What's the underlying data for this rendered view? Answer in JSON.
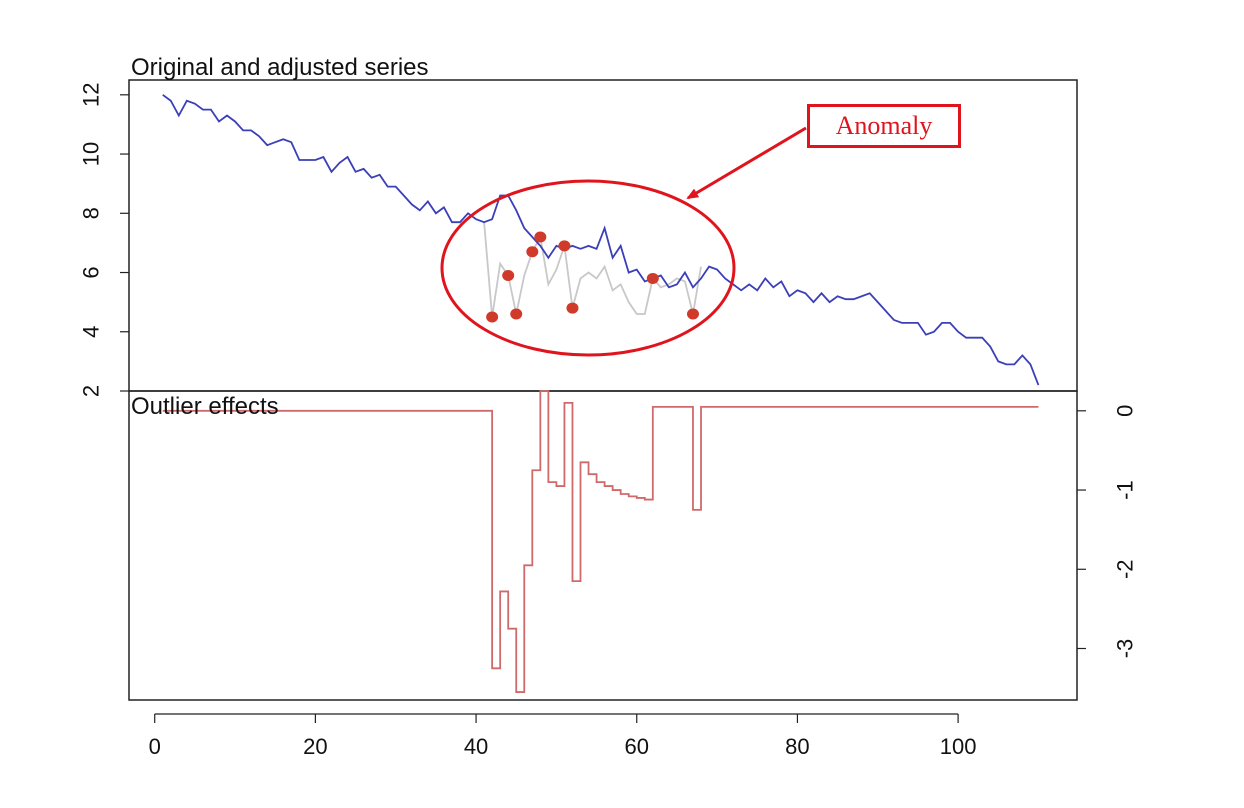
{
  "chart_data": {
    "type": "line",
    "panels": [
      {
        "title": "Original and adjusted series",
        "ylim": [
          2,
          12.5
        ],
        "y_ticks": [
          "2",
          "4",
          "6",
          "8",
          "10",
          "12"
        ],
        "y_tick_values": [
          2,
          4,
          6,
          8,
          10,
          12
        ],
        "series": [
          {
            "color": "#3b3fb8",
            "x": [
              1,
              2,
              3,
              4,
              5,
              6,
              7,
              8,
              9,
              10,
              11,
              12,
              13,
              14,
              15,
              16,
              17,
              18,
              19,
              20,
              21,
              22,
              23,
              24,
              25,
              26,
              27,
              28,
              29,
              30,
              31,
              32,
              33,
              34,
              35,
              36,
              37,
              38,
              39,
              40,
              41,
              42,
              43,
              44,
              45,
              46,
              47,
              48,
              49,
              50,
              51,
              52,
              53,
              54,
              55,
              56,
              57,
              58,
              59,
              60,
              61,
              62,
              63,
              64,
              65,
              66,
              67,
              68,
              69,
              70,
              71,
              72,
              73,
              74,
              75,
              76,
              77,
              78,
              79,
              80,
              81,
              82,
              83,
              84,
              85,
              86,
              87,
              88,
              89,
              90,
              91,
              92,
              93,
              94,
              95,
              96,
              97,
              98,
              99,
              100,
              101,
              102,
              103,
              104,
              105,
              106,
              107,
              108,
              109,
              110
            ],
            "y": [
              12,
              11.8,
              11.3,
              11.8,
              11.7,
              11.5,
              11.5,
              11.1,
              11.3,
              11.1,
              10.8,
              10.8,
              10.6,
              10.3,
              10.4,
              10.5,
              10.4,
              9.8,
              9.8,
              9.8,
              9.9,
              9.4,
              9.7,
              9.9,
              9.4,
              9.5,
              9.2,
              9.3,
              8.9,
              8.9,
              8.6,
              8.3,
              8.1,
              8.4,
              8.0,
              8.2,
              7.7,
              7.7,
              8.0,
              7.8,
              7.7,
              7.8,
              8.6,
              8.6,
              8.1,
              7.5,
              7.2,
              6.9,
              6.5,
              6.9,
              6.8,
              6.9,
              6.8,
              6.9,
              6.8,
              7.5,
              6.5,
              6.9,
              6.0,
              6.1,
              5.7,
              5.8,
              5.9,
              5.5,
              5.6,
              6.0,
              5.5,
              5.8,
              6.2,
              6.1,
              5.8,
              5.6,
              5.4,
              5.6,
              5.4,
              5.8,
              5.5,
              5.7,
              5.2,
              5.4,
              5.3,
              5.0,
              5.3,
              5.0,
              5.2,
              5.1,
              5.1,
              5.2,
              5.3,
              5.0,
              4.7,
              4.4,
              4.3,
              4.3,
              4.3,
              3.9,
              4.0,
              4.3,
              4.3,
              4.0,
              3.8,
              3.8,
              3.8,
              3.5,
              3.0,
              2.9,
              2.9,
              3.2,
              2.9,
              2.2
            ]
          },
          {
            "color": "#c8c8c8",
            "x": [
              41,
              42,
              43,
              44,
              45,
              46,
              47,
              48,
              49,
              50,
              51,
              52,
              53,
              54,
              55,
              56,
              57,
              58,
              59,
              60,
              61,
              62,
              63,
              64,
              65,
              66,
              67,
              68
            ],
            "y": [
              7.7,
              4.5,
              6.3,
              5.9,
              4.6,
              5.9,
              6.7,
              7.2,
              5.6,
              6.1,
              6.9,
              4.8,
              5.8,
              6.0,
              5.8,
              6.2,
              5.4,
              5.6,
              5.0,
              4.6,
              4.6,
              5.8,
              5.5,
              5.6,
              5.8,
              5.7,
              4.6,
              6.2
            ]
          }
        ],
        "anomaly_points": {
          "color": "#d03a2a",
          "x": [
            42,
            44,
            45,
            47,
            48,
            51,
            52,
            62,
            67
          ],
          "y": [
            4.5,
            5.9,
            4.6,
            6.7,
            7.2,
            6.9,
            4.8,
            5.8,
            4.6
          ]
        }
      },
      {
        "title": "Outlier effects",
        "ylim": [
          -3.65,
          0.25
        ],
        "y_ticks": [
          "-3",
          "-2",
          "-1",
          "0"
        ],
        "y_tick_values": [
          -3,
          -2,
          -1,
          0
        ],
        "series": [
          {
            "color": "#d06a6a",
            "step": true,
            "x": [
              1,
              42,
              43,
              44,
              45,
              46,
              47,
              48,
              49,
              50,
              51,
              52,
              53,
              54,
              55,
              56,
              57,
              58,
              59,
              60,
              61,
              62,
              67,
              68,
              110
            ],
            "y": [
              0,
              -3.25,
              -2.28,
              -2.75,
              -3.55,
              -1.95,
              -0.75,
              0.25,
              -0.9,
              -0.95,
              0.1,
              -2.15,
              -0.65,
              -0.8,
              -0.9,
              -0.95,
              -1.0,
              -1.05,
              -1.08,
              -1.1,
              -1.12,
              0.05,
              -1.25,
              0.05,
              0.05
            ]
          }
        ]
      }
    ],
    "x_ticks": [
      "0",
      "20",
      "40",
      "60",
      "80",
      "100"
    ],
    "x_tick_values": [
      0,
      20,
      40,
      60,
      80,
      100
    ],
    "xlim": [
      -3.2,
      114.8
    ],
    "annotation": {
      "label": "Anomaly",
      "color": "#e0141c"
    },
    "grid": false
  }
}
